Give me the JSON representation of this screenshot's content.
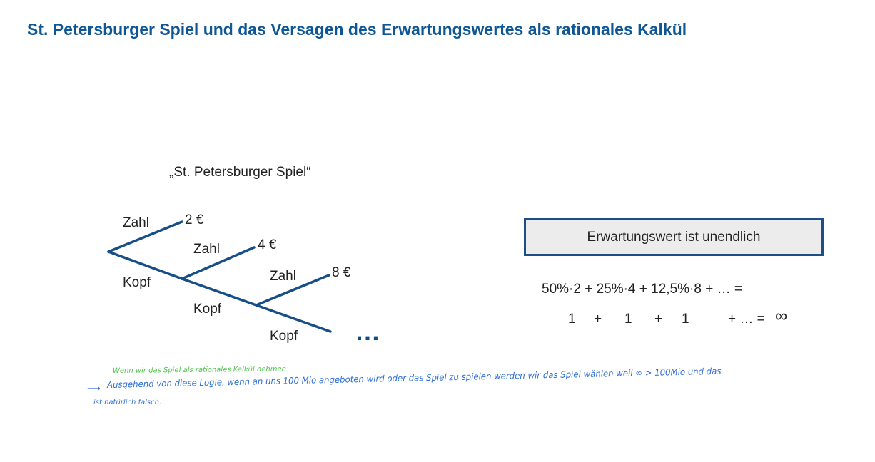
{
  "title": "St. Petersburger Spiel und das Versagen des Erwartungswertes als rationales Kalkül",
  "diagram": {
    "game_label": "„St. Petersburger Spiel“",
    "levels": [
      {
        "zahl": "Zahl",
        "kopf": "Kopf",
        "payout": "2 €"
      },
      {
        "zahl": "Zahl",
        "kopf": "Kopf",
        "payout": "4 €"
      },
      {
        "zahl": "Zahl",
        "kopf": "Kopf",
        "payout": "8 €"
      }
    ],
    "ellipsis": "…",
    "line_color": "#174e87"
  },
  "result_box": {
    "text": "Erwartungswert ist unendlich"
  },
  "formula": {
    "line1": "50%·2 + 25%·4 + 12,5%·8 + … =",
    "line2": {
      "terms": [
        "1",
        "+",
        "1",
        "+",
        "1",
        "+ … ="
      ],
      "infinity": "∞"
    }
  },
  "handwriting": {
    "green_note": "Wenn wir das Spiel als rationales Kalkül nehmen",
    "arrow": "⟶",
    "blue_line1": "Ausgehend von diese Logie, wenn an uns 100 Mio angeboten wird oder das Spiel zu spielen werden wir das Spiel wählen weil ∞ > 100Mio und das",
    "blue_line2": "ist natürlich falsch."
  },
  "colors": {
    "title": "#0f5794",
    "box_border": "#1c4f86",
    "box_fill": "#ececec",
    "handwriting_blue": "#2f6fd6",
    "handwriting_green": "#4fc24f"
  }
}
